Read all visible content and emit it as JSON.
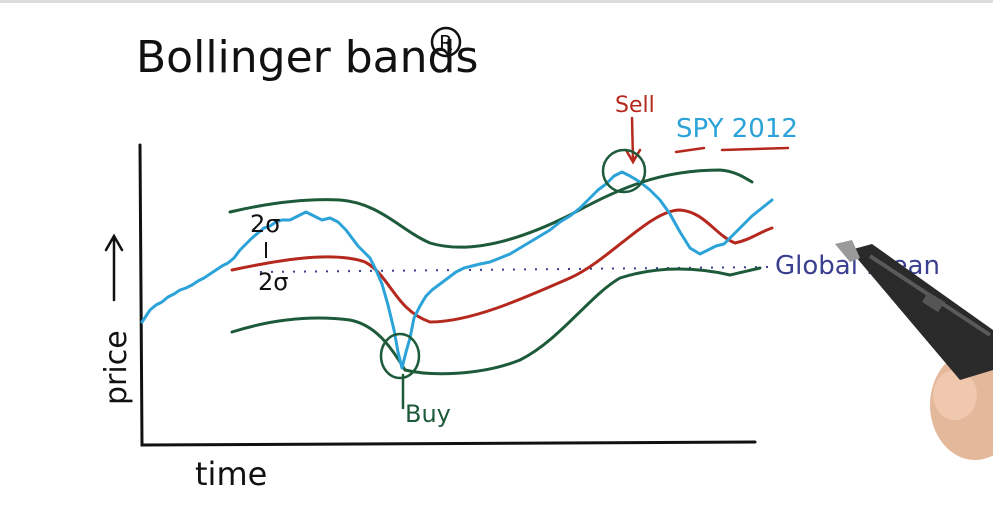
{
  "title": "Bollinger bands",
  "registered_mark": "R",
  "axis": {
    "ylabel": "price",
    "xlabel": "time"
  },
  "annotations": {
    "series_name": "SPY 2012",
    "sell": "Sell",
    "buy": "Buy",
    "global_mean": "Global mean",
    "sigma_upper": "2σ",
    "sigma_lower": "2σ"
  },
  "colors": {
    "price": "#2ba3d8",
    "moving_average": "#b5281d",
    "bands": "#1d5a3a",
    "global_mean": "#3a3f8f",
    "axes": "#111111",
    "sell": "#b5281d",
    "buy": "#1d5a3a"
  },
  "icons": {
    "pen": "stylus-pen-icon"
  }
}
